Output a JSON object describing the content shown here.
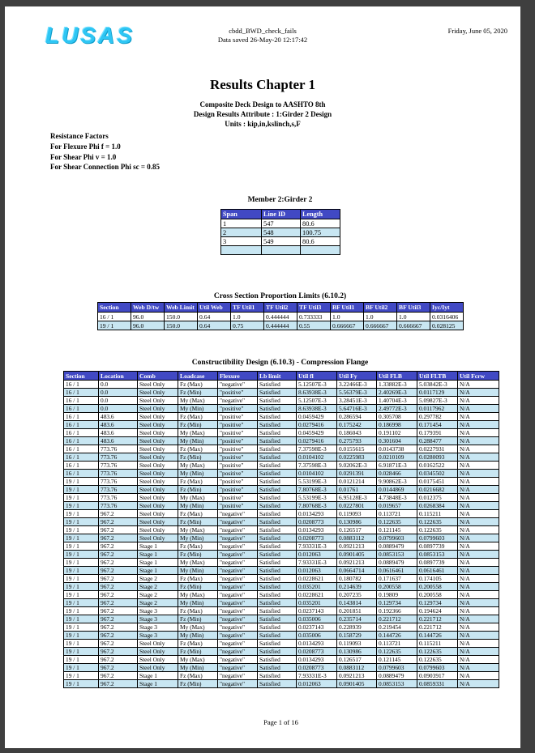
{
  "colors": {
    "table_header_bg": "#4149c4",
    "table_alt_row": "#c8e6f2",
    "logo_cyan": "#2ec6f4",
    "frame": "#3f3f3f"
  },
  "page": {
    "logo_text": "LUSAS",
    "header_center_line1": "cbdd_BWD_check_fails",
    "header_center_line2": "Data saved 26-May-20 12:17:42",
    "header_right_date": "Friday, June 05, 2020",
    "title": "Results Chapter 1",
    "subtitle_line1": "Composite Deck Design to AASHTO 8th",
    "subtitle_line2": "Design Results Attribute : 1:Girder 2 Design",
    "subtitle_line3": "Units : kip,in,kslinch,s,F",
    "resistance_factors": [
      "Resistance Factors",
      "For Flexure Phi f = 1.0",
      "For Shear Phi v = 1.0",
      "For Shear Connection Phi sc = 0.85"
    ],
    "footer": "Page 1 of 16"
  },
  "member_table": {
    "title": "Member 2:Girder 2",
    "headers": [
      "Span",
      "Line ID",
      "Length"
    ],
    "rows": [
      [
        "1",
        "547",
        "80.6"
      ],
      [
        "2",
        "548",
        "100.75"
      ],
      [
        "3",
        "549",
        "80.6"
      ],
      [
        "",
        "",
        ""
      ]
    ]
  },
  "cross_section_table": {
    "title": "Cross Section Proportion Limits (6.10.2)",
    "headers": [
      "Section",
      "Web D/tw",
      "Web Limit",
      "Util Web",
      "TF Util1",
      "TF Util2",
      "TF Util3",
      "BF Util1",
      "BF Util2",
      "BF Util3",
      "Iyc/Iyt"
    ],
    "rows": [
      [
        "16 / 1",
        "96.0",
        "150.0",
        "0.64",
        "1.0",
        "0.444444",
        "0.733333",
        "1.0",
        "1.0",
        "1.0",
        "0.0316406"
      ],
      [
        "19 / 1",
        "96.0",
        "150.0",
        "0.64",
        "0.75",
        "0.444444",
        "0.55",
        "0.666667",
        "0.666667",
        "0.666667",
        "0.028125"
      ]
    ]
  },
  "constructibility_table": {
    "title": "Constructibility Design (6.10.3) - Compression Flange",
    "headers": [
      "Section",
      "Location",
      "Comb",
      "Loadcase",
      "Flexure",
      "Lb limit",
      "Util fl",
      "Util Fy",
      "Util FLB",
      "Util FLTB",
      "Util Fcrw"
    ],
    "rows": [
      [
        "16 / 1",
        "0.0",
        "Steel Only",
        "Fz (Max)",
        "\"negative\"",
        "Satisfied",
        "5.12507E-3",
        "3.22466E-3",
        "1.33882E-3",
        "5.03842E-3",
        "N/A"
      ],
      [
        "16 / 1",
        "0.0",
        "Steel Only",
        "Fz (Min)",
        "\"positive\"",
        "Satisfied",
        "8.63938E-3",
        "5.56379E-3",
        "2.40269E-3",
        "0.0117129",
        "N/A"
      ],
      [
        "16 / 1",
        "0.0",
        "Steel Only",
        "My (Max)",
        "\"negative\"",
        "Satisfied",
        "5.12507E-3",
        "3.28451E-3",
        "1.40704E-3",
        "5.09827E-3",
        "N/A"
      ],
      [
        "16 / 1",
        "0.0",
        "Steel Only",
        "My (Min)",
        "\"positive\"",
        "Satisfied",
        "8.63938E-3",
        "5.64716E-3",
        "2.49772E-3",
        "0.0117962",
        "N/A"
      ],
      [
        "16 / 1",
        "483.6",
        "Steel Only",
        "Fz (Max)",
        "\"positive\"",
        "Satisfied",
        "0.0459429",
        "0.286594",
        "0.305708",
        "0.297782",
        "N/A"
      ],
      [
        "16 / 1",
        "483.6",
        "Steel Only",
        "Fz (Min)",
        "\"positive\"",
        "Satisfied",
        "0.0279416",
        "0.175242",
        "0.186998",
        "0.171454",
        "N/A"
      ],
      [
        "16 / 1",
        "483.6",
        "Steel Only",
        "My (Max)",
        "\"positive\"",
        "Satisfied",
        "0.0459429",
        "0.186043",
        "0.191102",
        "0.179391",
        "N/A"
      ],
      [
        "16 / 1",
        "483.6",
        "Steel Only",
        "My (Min)",
        "\"positive\"",
        "Satisfied",
        "0.0279416",
        "0.275793",
        "0.301604",
        "0.288477",
        "N/A"
      ],
      [
        "16 / 1",
        "773.76",
        "Steel Only",
        "Fz (Max)",
        "\"positive\"",
        "Satisfied",
        "7.37598E-3",
        "0.0155615",
        "0.0143738",
        "0.0227931",
        "N/A"
      ],
      [
        "16 / 1",
        "773.76",
        "Steel Only",
        "Fz (Min)",
        "\"positive\"",
        "Satisfied",
        "0.0104102",
        "0.0225983",
        "0.0210109",
        "0.0280093",
        "N/A"
      ],
      [
        "16 / 1",
        "773.76",
        "Steel Only",
        "My (Max)",
        "\"positive\"",
        "Satisfied",
        "7.37598E-3",
        "9.02062E-3",
        "6.91871E-3",
        "0.0162522",
        "N/A"
      ],
      [
        "16 / 1",
        "773.76",
        "Steel Only",
        "My (Min)",
        "\"positive\"",
        "Satisfied",
        "0.0104102",
        "0.0291391",
        "0.028466",
        "0.0345502",
        "N/A"
      ],
      [
        "19 / 1",
        "773.76",
        "Steel Only",
        "Fz (Max)",
        "\"positive\"",
        "Satisfied",
        "5.53199E-3",
        "0.0121214",
        "9.90862E-3",
        "0.0175451",
        "N/A"
      ],
      [
        "19 / 1",
        "773.76",
        "Steel Only",
        "Fz (Min)",
        "\"positive\"",
        "Satisfied",
        "7.80768E-3",
        "0.01761",
        "0.0144869",
        "0.0216682",
        "N/A"
      ],
      [
        "19 / 1",
        "773.76",
        "Steel Only",
        "My (Max)",
        "\"positive\"",
        "Satisfied",
        "5.53199E-3",
        "6.95128E-3",
        "4.73848E-3",
        "0.012375",
        "N/A"
      ],
      [
        "19 / 1",
        "773.76",
        "Steel Only",
        "My (Min)",
        "\"positive\"",
        "Satisfied",
        "7.80768E-3",
        "0.0227801",
        "0.019657",
        "0.0268384",
        "N/A"
      ],
      [
        "19 / 1",
        "967.2",
        "Steel Only",
        "Fz (Max)",
        "\"negative\"",
        "Satisfied",
        "0.0134293",
        "0.119093",
        "0.113721",
        "0.115211",
        "N/A"
      ],
      [
        "19 / 1",
        "967.2",
        "Steel Only",
        "Fz (Min)",
        "\"negative\"",
        "Satisfied",
        "0.0208773",
        "0.130986",
        "0.122635",
        "0.122635",
        "N/A"
      ],
      [
        "19 / 1",
        "967.2",
        "Steel Only",
        "My (Max)",
        "\"negative\"",
        "Satisfied",
        "0.0134293",
        "0.126517",
        "0.121145",
        "0.122635",
        "N/A"
      ],
      [
        "19 / 1",
        "967.2",
        "Steel Only",
        "My (Min)",
        "\"negative\"",
        "Satisfied",
        "0.0208773",
        "0.0883112",
        "0.0799603",
        "0.0799603",
        "N/A"
      ],
      [
        "19 / 1",
        "967.2",
        "Stage 1",
        "Fz (Max)",
        "\"negative\"",
        "Satisfied",
        "7.93331E-3",
        "0.0921213",
        "0.0889479",
        "0.0897739",
        "N/A"
      ],
      [
        "19 / 1",
        "967.2",
        "Stage 1",
        "Fz (Min)",
        "\"negative\"",
        "Satisfied",
        "0.012063",
        "0.0901405",
        "0.0853153",
        "0.0853153",
        "N/A"
      ],
      [
        "19 / 1",
        "967.2",
        "Stage 1",
        "My (Max)",
        "\"negative\"",
        "Satisfied",
        "7.93331E-3",
        "0.0921213",
        "0.0889479",
        "0.0897739",
        "N/A"
      ],
      [
        "19 / 1",
        "967.2",
        "Stage 1",
        "My (Min)",
        "\"negative\"",
        "Satisfied",
        "0.012063",
        "0.0664714",
        "0.0616461",
        "0.0616461",
        "N/A"
      ],
      [
        "19 / 1",
        "967.2",
        "Stage 2",
        "Fz (Max)",
        "\"negative\"",
        "Satisfied",
        "0.0228621",
        "0.180782",
        "0.171637",
        "0.174105",
        "N/A"
      ],
      [
        "19 / 1",
        "967.2",
        "Stage 2",
        "Fz (Min)",
        "\"negative\"",
        "Satisfied",
        "0.035201",
        "0.214639",
        "0.200558",
        "0.200558",
        "N/A"
      ],
      [
        "19 / 1",
        "967.2",
        "Stage 2",
        "My (Max)",
        "\"negative\"",
        "Satisfied",
        "0.0228621",
        "0.207235",
        "0.19809",
        "0.200558",
        "N/A"
      ],
      [
        "19 / 1",
        "967.2",
        "Stage 2",
        "My (Min)",
        "\"negative\"",
        "Satisfied",
        "0.035201",
        "0.143814",
        "0.129734",
        "0.129734",
        "N/A"
      ],
      [
        "19 / 1",
        "967.2",
        "Stage 3",
        "Fz (Max)",
        "\"negative\"",
        "Satisfied",
        "0.0237143",
        "0.201851",
        "0.192366",
        "0.194624",
        "N/A"
      ],
      [
        "19 / 1",
        "967.2",
        "Stage 3",
        "Fz (Min)",
        "\"negative\"",
        "Satisfied",
        "0.035006",
        "0.235714",
        "0.221712",
        "0.221712",
        "N/A"
      ],
      [
        "19 / 1",
        "967.2",
        "Stage 3",
        "My (Max)",
        "\"negative\"",
        "Satisfied",
        "0.0237143",
        "0.228939",
        "0.219454",
        "0.221712",
        "N/A"
      ],
      [
        "19 / 1",
        "967.2",
        "Stage 3",
        "My (Min)",
        "\"negative\"",
        "Satisfied",
        "0.035006",
        "0.158729",
        "0.144726",
        "0.144726",
        "N/A"
      ],
      [
        "19 / 1",
        "967.2",
        "Steel Only",
        "Fz (Max)",
        "\"negative\"",
        "Satisfied",
        "0.0134293",
        "0.119093",
        "0.113721",
        "0.115211",
        "N/A"
      ],
      [
        "19 / 1",
        "967.2",
        "Steel Only",
        "Fz (Min)",
        "\"negative\"",
        "Satisfied",
        "0.0208773",
        "0.130986",
        "0.122635",
        "0.122635",
        "N/A"
      ],
      [
        "19 / 1",
        "967.2",
        "Steel Only",
        "My (Max)",
        "\"negative\"",
        "Satisfied",
        "0.0134293",
        "0.126517",
        "0.121145",
        "0.122635",
        "N/A"
      ],
      [
        "19 / 1",
        "967.2",
        "Steel Only",
        "My (Min)",
        "\"negative\"",
        "Satisfied",
        "0.0208773",
        "0.0883112",
        "0.0799603",
        "0.0799603",
        "N/A"
      ],
      [
        "19 / 1",
        "967.2",
        "Stage 1",
        "Fz (Max)",
        "\"negative\"",
        "Satisfied",
        "7.93331E-3",
        "0.0921213",
        "0.0889479",
        "0.0903917",
        "N/A"
      ],
      [
        "19 / 1",
        "967.2",
        "Stage 1",
        "Fz (Min)",
        "\"negative\"",
        "Satisfied",
        "0.012063",
        "0.0901405",
        "0.0853153",
        "0.0859331",
        "N/A"
      ]
    ]
  }
}
